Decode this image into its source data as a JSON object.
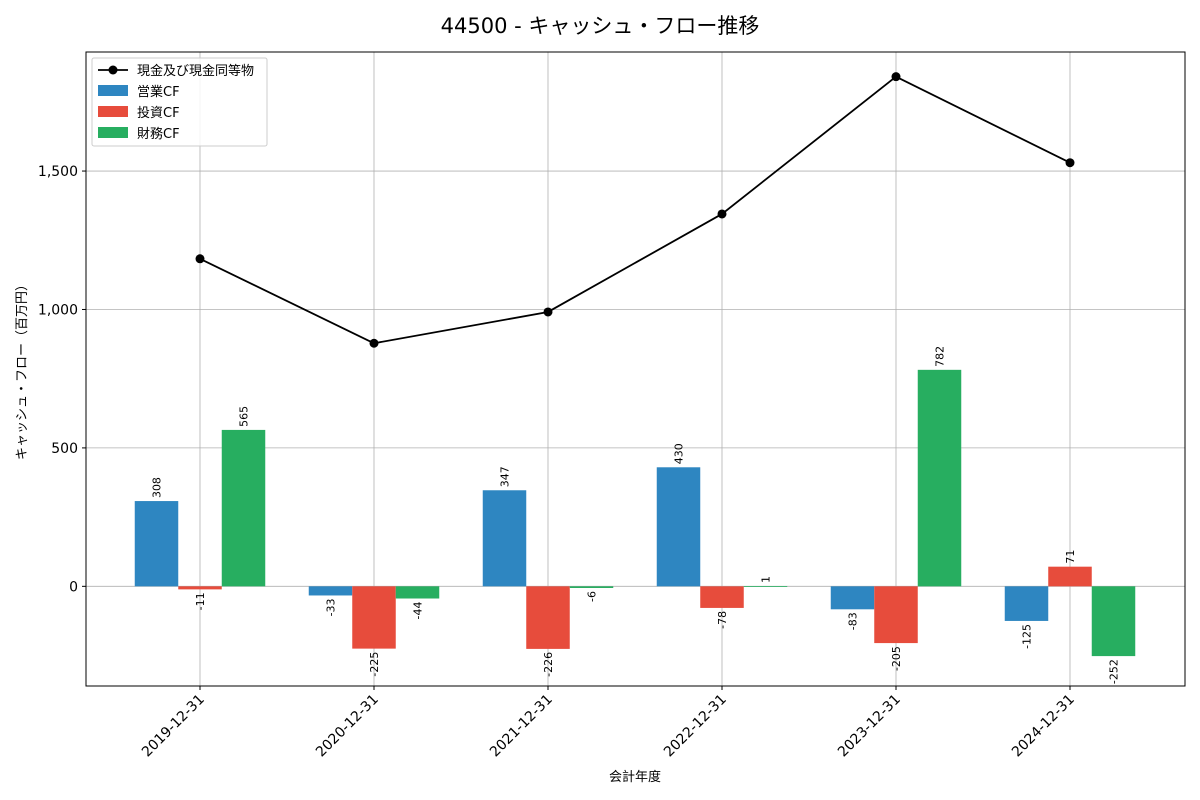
{
  "chart_data": {
    "type": "bar",
    "title": "44500 - キャッシュ・フロー推移",
    "xlabel": "会計年度",
    "ylabel": "キャッシュ・フロー（百万円）",
    "categories": [
      "2019-12-31",
      "2020-12-31",
      "2021-12-31",
      "2022-12-31",
      "2023-12-31",
      "2024-12-31"
    ],
    "ylim": [
      -360,
      1930
    ],
    "yticks": [
      0,
      500,
      1000,
      1500
    ],
    "ytick_labels": [
      "0",
      "500",
      "1,000",
      "1,500"
    ],
    "grid": true,
    "legend_position": "top-left",
    "series": [
      {
        "name": "営業CF",
        "kind": "bar",
        "color": "#2e86c1",
        "values": [
          308,
          -33,
          347,
          430,
          -83,
          -125
        ],
        "labels": [
          "308",
          "-33",
          "347",
          "430",
          "-83",
          "-125"
        ]
      },
      {
        "name": "投資CF",
        "kind": "bar",
        "color": "#e74c3c",
        "values": [
          -11,
          -225,
          -226,
          -78,
          -205,
          71
        ],
        "labels": [
          "-11",
          "-225",
          "-226",
          "-78",
          "-205",
          "71"
        ]
      },
      {
        "name": "財務CF",
        "kind": "bar",
        "color": "#27ae60",
        "values": [
          565,
          -44,
          -6,
          1,
          782,
          -252
        ],
        "labels": [
          "565",
          "-44",
          "-6",
          "1",
          "782",
          "-252"
        ]
      }
    ],
    "line": {
      "name": "現金及び現金同等物",
      "kind": "line",
      "color": "#000000",
      "values": [
        1183,
        878,
        991,
        1345,
        1841,
        1530
      ]
    },
    "legend_order": [
      "現金及び現金同等物",
      "営業CF",
      "投資CF",
      "財務CF"
    ]
  }
}
